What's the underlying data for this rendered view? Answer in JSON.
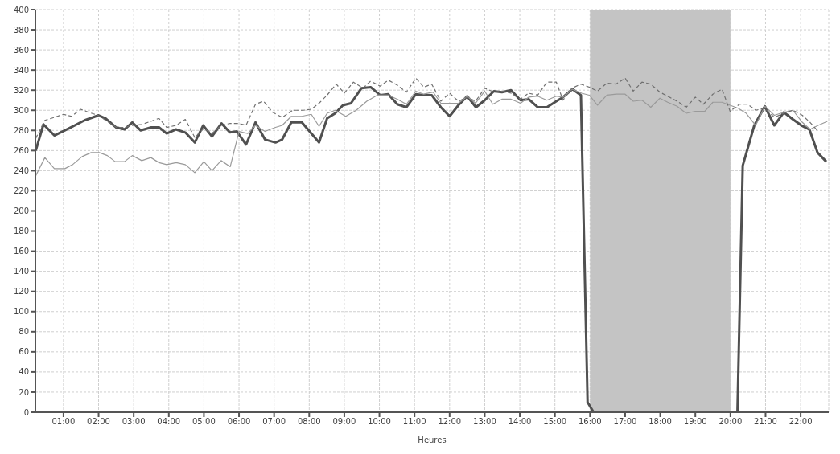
{
  "chart_data": {
    "type": "line",
    "xlabel": "Heures",
    "xlim": [
      0.2,
      22.8
    ],
    "ylim": [
      0,
      400
    ],
    "xticks": [
      {
        "value": 1,
        "label": "01:00"
      },
      {
        "value": 2,
        "label": "02:00"
      },
      {
        "value": 3,
        "label": "03:00"
      },
      {
        "value": 4,
        "label": "04:00"
      },
      {
        "value": 5,
        "label": "05:00"
      },
      {
        "value": 6,
        "label": "06:00"
      },
      {
        "value": 7,
        "label": "07:00"
      },
      {
        "value": 8,
        "label": "08:00"
      },
      {
        "value": 9,
        "label": "09:00"
      },
      {
        "value": 10,
        "label": "10:00"
      },
      {
        "value": 11,
        "label": "11:00"
      },
      {
        "value": 12,
        "label": "12:00"
      },
      {
        "value": 13,
        "label": "13:00"
      },
      {
        "value": 14,
        "label": "14:00"
      },
      {
        "value": 15,
        "label": "15:00"
      },
      {
        "value": 16,
        "label": "16:00"
      },
      {
        "value": 17,
        "label": "17:00"
      },
      {
        "value": 18,
        "label": "18:00"
      },
      {
        "value": 19,
        "label": "19:00"
      },
      {
        "value": 20,
        "label": "20:00"
      },
      {
        "value": 21,
        "label": "21:00"
      },
      {
        "value": 22,
        "label": "22:00"
      }
    ],
    "yticks": [
      0,
      20,
      40,
      60,
      80,
      100,
      120,
      140,
      160,
      180,
      200,
      220,
      240,
      260,
      280,
      300,
      320,
      340,
      360,
      380,
      400
    ],
    "grid": true,
    "marker": "none",
    "bands": [
      {
        "axis": "x",
        "from": 16,
        "to": 20,
        "color": "#c4c4c4"
      }
    ],
    "series": [
      {
        "color": "#505050",
        "line_style": "solid",
        "x": [
          0.21,
          0.43,
          0.74,
          1.15,
          1.6,
          2.0,
          2.2,
          2.5,
          2.74,
          2.96,
          3.2,
          3.5,
          3.72,
          3.94,
          4.2,
          4.47,
          4.74,
          4.98,
          5.23,
          5.5,
          5.74,
          5.94,
          6.2,
          6.47,
          6.74,
          7.04,
          7.23,
          7.49,
          7.79,
          8.28,
          8.51,
          8.74,
          8.96,
          9.19,
          9.49,
          9.75,
          10.02,
          10.25,
          10.51,
          10.77,
          11.04,
          11.26,
          11.49,
          11.75,
          12.0,
          12.25,
          12.5,
          12.75,
          13.0,
          13.26,
          13.49,
          13.75,
          14.02,
          14.25,
          14.51,
          14.77,
          15.04,
          15.23,
          15.5,
          15.74,
          15.93,
          16.1,
          20.2,
          20.35,
          20.68,
          20.98,
          21.25,
          21.52,
          21.78,
          22.02,
          22.25,
          22.48,
          22.73
        ],
        "values": [
          260,
          286,
          275,
          282,
          290,
          295,
          292,
          283,
          281,
          288,
          280,
          283,
          283,
          277,
          281,
          278,
          268,
          285,
          274,
          287,
          278,
          279,
          266,
          288,
          271,
          268,
          271,
          288,
          288,
          268,
          292,
          297,
          305,
          307,
          322,
          323,
          315,
          316,
          306,
          303,
          316,
          315,
          315,
          303,
          294,
          305,
          314,
          303,
          310,
          319,
          318,
          320,
          310,
          311,
          303,
          303,
          309,
          313,
          321,
          315,
          10,
          0,
          0,
          245,
          285,
          304,
          285,
          298,
          291,
          285,
          281,
          258,
          249
        ]
      },
      {
        "color": "#9a9a9a",
        "line_style": "solid",
        "x": [
          0.21,
          0.47,
          0.74,
          1.04,
          1.26,
          1.53,
          1.79,
          2.02,
          2.25,
          2.47,
          2.74,
          2.96,
          3.23,
          3.49,
          3.72,
          3.94,
          4.21,
          4.47,
          4.74,
          5.0,
          5.23,
          5.49,
          5.75,
          6.0,
          6.25,
          6.47,
          6.74,
          7.04,
          7.23,
          7.49,
          7.79,
          8.06,
          8.28,
          8.51,
          8.74,
          9.04,
          9.34,
          9.64,
          9.94,
          10.25,
          10.51,
          10.77,
          11.04,
          11.26,
          11.53,
          11.75,
          12.0,
          12.25,
          12.5,
          12.74,
          13.0,
          13.23,
          13.49,
          13.75,
          14.02,
          14.25,
          14.51,
          14.77,
          15.04,
          15.23,
          15.49,
          15.76,
          15.98,
          16.21,
          16.48,
          16.74,
          17.0,
          17.23,
          17.48,
          17.73,
          17.99,
          18.21,
          18.48,
          18.74,
          19.0,
          19.27,
          19.5,
          19.76,
          19.99,
          20.22,
          20.45,
          20.72,
          20.98,
          21.25,
          21.52,
          21.78,
          22.05,
          22.27,
          22.5,
          22.76
        ],
        "values": [
          235,
          253,
          242,
          242,
          246,
          254,
          258,
          258,
          255,
          249,
          249,
          255,
          250,
          253,
          248,
          246,
          248,
          246,
          238,
          249,
          240,
          250,
          244,
          279,
          277,
          285,
          279,
          283,
          285,
          294,
          294,
          296,
          284,
          297,
          300,
          294,
          300,
          309,
          315,
          315,
          311,
          306,
          319,
          316,
          318,
          307,
          307,
          307,
          314,
          307,
          319,
          306,
          311,
          311,
          307,
          313,
          314,
          310,
          314,
          313,
          321,
          317,
          315,
          305,
          315,
          316,
          316,
          309,
          310,
          303,
          312,
          308,
          304,
          297,
          299,
          299,
          308,
          308,
          305,
          302,
          297,
          285,
          304,
          295,
          298,
          300,
          288,
          281,
          285,
          289
        ]
      },
      {
        "color": "#707070",
        "line_style": "dashed",
        "x": [
          0.21,
          0.47,
          0.74,
          1.0,
          1.23,
          1.49,
          1.72,
          1.98,
          2.25,
          2.51,
          2.74,
          2.96,
          3.23,
          3.49,
          3.72,
          3.94,
          4.21,
          4.47,
          4.74,
          5.0,
          5.23,
          5.49,
          5.75,
          5.98,
          6.2,
          6.47,
          6.7,
          6.96,
          7.23,
          7.53,
          7.83,
          8.06,
          8.28,
          8.51,
          8.77,
          9.0,
          9.26,
          9.53,
          9.75,
          10.02,
          10.25,
          10.51,
          10.77,
          11.04,
          11.26,
          11.49,
          11.75,
          12.0,
          12.25,
          12.5,
          12.74,
          13.0,
          13.26,
          13.49,
          13.75,
          14.02,
          14.25,
          14.51,
          14.77,
          15.04,
          15.23,
          15.49,
          15.74,
          15.98,
          16.21,
          16.48,
          16.74,
          17.0,
          17.23,
          17.48,
          17.73,
          17.99,
          18.21,
          18.48,
          18.74,
          19.0,
          19.23,
          19.5,
          19.76,
          19.99,
          20.26,
          20.49,
          20.72,
          20.98,
          21.25,
          21.52,
          21.78,
          22.05,
          22.27,
          22.5
        ],
        "values": [
          272,
          290,
          293,
          296,
          294,
          301,
          298,
          295,
          289,
          283,
          283,
          285,
          286,
          289,
          292,
          283,
          285,
          291,
          273,
          282,
          277,
          285,
          287,
          287,
          285,
          306,
          309,
          298,
          293,
          300,
          300,
          301,
          307,
          315,
          326,
          317,
          328,
          322,
          329,
          324,
          330,
          325,
          318,
          332,
          323,
          326,
          309,
          317,
          309,
          313,
          309,
          322,
          318,
          319,
          317,
          311,
          317,
          315,
          328,
          328,
          310,
          322,
          326,
          323,
          319,
          327,
          326,
          332,
          319,
          328,
          326,
          318,
          314,
          309,
          303,
          313,
          306,
          316,
          321,
          299,
          306,
          306,
          300,
          302,
          293,
          297,
          300,
          295,
          288,
          279
        ]
      }
    ]
  }
}
